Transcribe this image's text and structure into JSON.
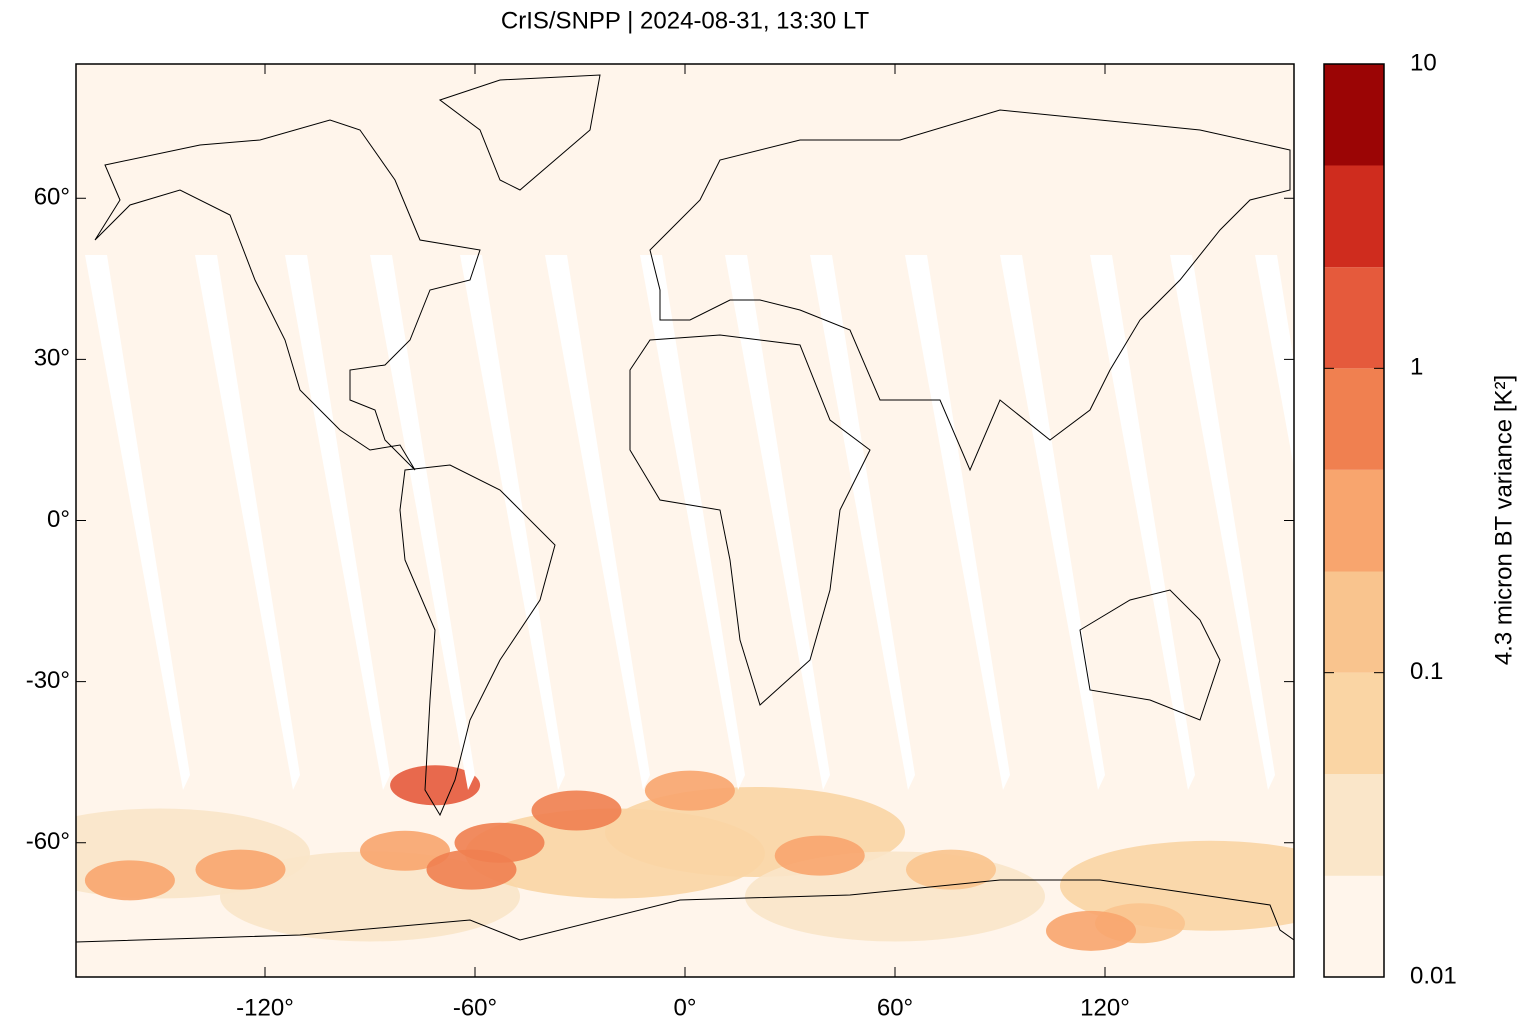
{
  "chart_data": {
    "type": "map",
    "title": "CrIS/SNPP | 2024-08-31, 13:30 LT",
    "xlim": [
      -174,
      174
    ],
    "ylim": [
      -85,
      85
    ],
    "xticks": [
      {
        "value": -120,
        "label": "-120°"
      },
      {
        "value": -60,
        "label": "-60°"
      },
      {
        "value": 0,
        "label": "0°"
      },
      {
        "value": 60,
        "label": "60°"
      },
      {
        "value": 120,
        "label": "120°"
      }
    ],
    "yticks": [
      {
        "value": -60,
        "label": "-60°"
      },
      {
        "value": -30,
        "label": "-30°"
      },
      {
        "value": 0,
        "label": "0°"
      },
      {
        "value": 30,
        "label": "30°"
      },
      {
        "value": 60,
        "label": "60°"
      }
    ],
    "colorbar": {
      "label": "4.3 micron BT variance [K²]",
      "scale": "log",
      "lim": [
        0.01,
        10
      ],
      "ticks": [
        0.01,
        0.1,
        1,
        10
      ],
      "levels": [
        0.01,
        0.0215,
        0.0464,
        0.1,
        0.215,
        0.464,
        1,
        2.15,
        4.64,
        10
      ],
      "colors": [
        "#fff5eb",
        "#fae6c9",
        "#fad5a4",
        "#f9c48e",
        "#f8a56e",
        "#f08050",
        "#e55a3c",
        "#cf2c1e",
        "#9b0505"
      ]
    },
    "hotspots": [
      {
        "lon": -150,
        "lat": -62,
        "value": 0.03
      },
      {
        "lon": -90,
        "lat": -70,
        "value": 0.03
      },
      {
        "lon": -20,
        "lat": -62,
        "value": 0.05
      },
      {
        "lon": 20,
        "lat": -58,
        "value": 0.05
      },
      {
        "lon": 60,
        "lat": -70,
        "value": 0.03
      },
      {
        "lon": 150,
        "lat": -68,
        "value": 0.05
      },
      {
        "lon": 130,
        "lat": -75,
        "value": 0.1
      },
      {
        "lon": -158.6,
        "lat": -67,
        "value": 0.25
      },
      {
        "lon": -127,
        "lat": -65,
        "value": 0.25
      },
      {
        "lon": 76,
        "lat": -65,
        "value": 0.15
      },
      {
        "lon": 116,
        "lat": -76.4,
        "value": 0.3
      },
      {
        "lon": 1.4,
        "lat": -50.3,
        "value": 0.4
      },
      {
        "lon": -80,
        "lat": -61.5,
        "value": 0.4
      },
      {
        "lon": 38.5,
        "lat": -62.4,
        "value": 0.4
      },
      {
        "lon": -53,
        "lat": -60,
        "value": 0.5
      },
      {
        "lon": -61,
        "lat": -65,
        "value": 0.6
      },
      {
        "lon": -31,
        "lat": -54,
        "value": 0.8
      },
      {
        "lon": -71.4,
        "lat": -49.3,
        "value": 2
      }
    ]
  }
}
